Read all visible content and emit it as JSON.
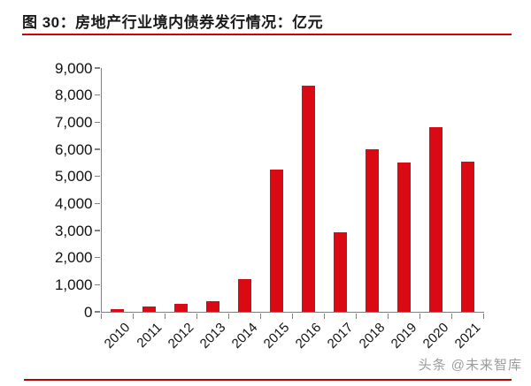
{
  "figure": {
    "title": "图 30：房地产行业境内债券发行情况：亿元",
    "watermark": "头条 @未来智库"
  },
  "colors": {
    "bar": "#da0a14",
    "title_rule": "#d40000",
    "bottom_rule": "#b80000",
    "axis": "#7f7f7f",
    "text": "#111111",
    "watermark": "#9b9b9b"
  },
  "chart_data": {
    "type": "bar",
    "title": "房地产行业境内债券发行情况",
    "unit": "亿元",
    "categories": [
      "2010",
      "2011",
      "2012",
      "2013",
      "2014",
      "2015",
      "2016",
      "2017",
      "2018",
      "2019",
      "2020",
      "2021"
    ],
    "values": [
      100,
      200,
      280,
      400,
      1200,
      5250,
      8350,
      2950,
      6000,
      5500,
      6800,
      5550
    ],
    "xlabel": "",
    "ylabel": "",
    "ylim": [
      0,
      9000
    ],
    "y_tick_step": 1000,
    "y_tick_labels": [
      "0",
      "1,000",
      "2,000",
      "3,000",
      "4,000",
      "5,000",
      "6,000",
      "7,000",
      "8,000",
      "9,000"
    ],
    "grid": false,
    "legend": null
  }
}
